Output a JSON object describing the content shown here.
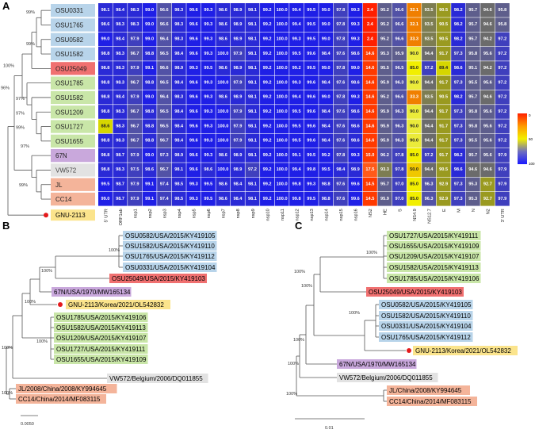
{
  "panels": {
    "a": "A",
    "b": "B",
    "c": "C"
  },
  "colors": {
    "blue": "#b8d4ea",
    "red": "#f07070",
    "green": "#c9e6a8",
    "purple": "#c9a8dc",
    "gray": "#e2e2e2",
    "orange": "#f4b49a",
    "yellow": "#fbe48c",
    "marker": "#e41a1c"
  },
  "heatmap": {
    "columns": [
      "5' UTR",
      "ORF1ab",
      "nsp1",
      "nsp2",
      "nsp3",
      "nsp4",
      "nsp5",
      "nsp6",
      "nsp7",
      "nsp8",
      "nsp9",
      "nsp10",
      "nsp11",
      "nsp12",
      "nsp13",
      "nsp14",
      "nsp15",
      "nsp16",
      "NS2",
      "HE",
      "S",
      "NS4.9",
      "NS12.7",
      "E",
      "M",
      "N",
      "N2",
      "3' UTR"
    ],
    "rows": [
      {
        "label": "OSU0331",
        "color": "blue",
        "values": [
          "98.1",
          "98.4",
          "98.3",
          "99.0",
          "96.6",
          "98.3",
          "99.6",
          "99.3",
          "98.6",
          "98.9",
          "98.1",
          "99.2",
          "100.0",
          "99.4",
          "99.5",
          "99.0",
          "97.8",
          "99.3",
          "2.4",
          "95.2",
          "96.6",
          "32.1",
          "93.5",
          "90.5",
          "98.2",
          "95.7",
          "94.6",
          "95.8"
        ]
      },
      {
        "label": "OSU1765",
        "color": "blue",
        "values": [
          "98.6",
          "98.3",
          "98.3",
          "99.0",
          "96.6",
          "98.3",
          "99.6",
          "99.3",
          "98.6",
          "98.9",
          "98.1",
          "99.2",
          "100.0",
          "99.4",
          "99.5",
          "99.0",
          "97.8",
          "99.3",
          "2.4",
          "95.2",
          "96.6",
          "32.1",
          "93.5",
          "90.5",
          "98.2",
          "95.7",
          "94.6",
          "95.8"
        ]
      },
      {
        "label": "OSU0582",
        "color": "blue",
        "values": [
          "99.0",
          "98.4",
          "97.9",
          "99.0",
          "96.4",
          "98.3",
          "99.6",
          "99.3",
          "98.6",
          "98.9",
          "98.1",
          "99.2",
          "100.0",
          "99.3",
          "99.5",
          "99.0",
          "97.8",
          "99.3",
          "2.4",
          "95.2",
          "96.6",
          "33.3",
          "93.5",
          "90.5",
          "98.2",
          "95.7",
          "94.2",
          "97.2"
        ]
      },
      {
        "label": "OSU1582",
        "color": "blue",
        "values": [
          "98.8",
          "98.3",
          "96.7",
          "98.8",
          "96.5",
          "98.4",
          "99.6",
          "99.3",
          "100.0",
          "97.9",
          "98.1",
          "99.2",
          "100.0",
          "99.5",
          "99.6",
          "98.4",
          "97.6",
          "98.6",
          "14.6",
          "95.3",
          "95.9",
          "90.0",
          "94.4",
          "91.7",
          "97.3",
          "95.8",
          "95.6",
          "97.2"
        ]
      },
      {
        "label": "OSU25049",
        "color": "red",
        "values": [
          "98.8",
          "98.3",
          "97.9",
          "99.1",
          "96.6",
          "98.9",
          "99.3",
          "99.5",
          "98.6",
          "98.9",
          "98.1",
          "99.2",
          "100.0",
          "99.2",
          "99.5",
          "99.0",
          "97.8",
          "99.0",
          "14.6",
          "95.5",
          "96.5",
          "85.0",
          "97.2",
          "89.4",
          "98.6",
          "95.1",
          "94.2",
          "97.2"
        ]
      },
      {
        "label": "OSU1785",
        "color": "green",
        "values": [
          "98.8",
          "98.3",
          "96.7",
          "98.8",
          "96.5",
          "98.4",
          "99.6",
          "99.3",
          "100.0",
          "97.9",
          "98.1",
          "99.2",
          "100.0",
          "99.3",
          "99.6",
          "98.4",
          "97.6",
          "98.6",
          "14.6",
          "95.9",
          "96.3",
          "90.0",
          "94.4",
          "91.7",
          "97.3",
          "95.5",
          "95.6",
          "97.2"
        ]
      },
      {
        "label": "OSU1582",
        "color": "green",
        "values": [
          "98.8",
          "98.4",
          "97.9",
          "99.0",
          "96.4",
          "98.3",
          "99.6",
          "99.3",
          "98.6",
          "98.9",
          "98.1",
          "99.2",
          "100.0",
          "99.4",
          "99.6",
          "99.0",
          "97.8",
          "99.3",
          "14.6",
          "95.2",
          "96.6",
          "33.3",
          "93.5",
          "90.5",
          "98.2",
          "95.7",
          "94.6",
          "97.2"
        ]
      },
      {
        "label": "OSU1209",
        "color": "green",
        "values": [
          "98.8",
          "98.3",
          "96.7",
          "98.8",
          "96.5",
          "98.4",
          "99.6",
          "99.3",
          "100.0",
          "97.9",
          "98.1",
          "99.2",
          "100.0",
          "99.5",
          "99.6",
          "98.4",
          "97.6",
          "98.6",
          "14.6",
          "95.9",
          "96.3",
          "90.0",
          "94.4",
          "91.7",
          "97.3",
          "95.8",
          "95.6",
          "97.2"
        ]
      },
      {
        "label": "OSU1727",
        "color": "green",
        "values": [
          "88.6",
          "98.3",
          "96.7",
          "98.8",
          "96.5",
          "98.4",
          "99.6",
          "99.3",
          "100.0",
          "97.9",
          "98.1",
          "99.2",
          "100.0",
          "99.5",
          "99.6",
          "98.4",
          "97.6",
          "98.6",
          "14.6",
          "95.9",
          "96.3",
          "90.0",
          "94.4",
          "91.7",
          "97.3",
          "95.8",
          "95.6",
          "97.2"
        ]
      },
      {
        "label": "OSU1655",
        "color": "green",
        "values": [
          "98.8",
          "98.3",
          "96.7",
          "98.8",
          "96.7",
          "98.4",
          "99.6",
          "99.3",
          "100.0",
          "97.9",
          "98.1",
          "99.2",
          "100.0",
          "99.5",
          "99.6",
          "98.4",
          "97.6",
          "98.6",
          "14.6",
          "95.9",
          "96.3",
          "90.0",
          "94.4",
          "91.7",
          "97.3",
          "95.5",
          "95.6",
          "97.2"
        ]
      },
      {
        "label": "67N",
        "color": "purple",
        "values": [
          "98.8",
          "98.7",
          "97.9",
          "99.0",
          "97.3",
          "98.9",
          "99.6",
          "99.3",
          "98.6",
          "98.9",
          "98.1",
          "99.2",
          "100.0",
          "99.1",
          "99.5",
          "99.2",
          "97.8",
          "99.3",
          "15.0",
          "96.2",
          "97.8",
          "85.0",
          "97.2",
          "91.7",
          "98.2",
          "95.7",
          "95.6",
          "97.9"
        ]
      },
      {
        "label": "VW572",
        "color": "gray",
        "values": [
          "98.8",
          "98.3",
          "97.5",
          "98.6",
          "96.7",
          "98.1",
          "99.6",
          "98.6",
          "100.0",
          "98.9",
          "97.2",
          "99.2",
          "100.0",
          "99.4",
          "99.8",
          "99.5",
          "98.4",
          "98.9",
          "17.5",
          "93.3",
          "97.8",
          "50.0",
          "94.4",
          "90.5",
          "98.6",
          "94.6",
          "94.6",
          "97.9"
        ]
      },
      {
        "label": "JL",
        "color": "orange",
        "values": [
          "99.5",
          "98.7",
          "97.9",
          "99.1",
          "97.4",
          "98.5",
          "99.3",
          "99.5",
          "98.6",
          "98.4",
          "98.1",
          "99.2",
          "100.0",
          "99.8",
          "99.3",
          "98.8",
          "97.6",
          "99.6",
          "14.5",
          "95.7",
          "97.0",
          "85.0",
          "96.3",
          "92.9",
          "97.3",
          "95.3",
          "92.7",
          "97.9"
        ]
      },
      {
        "label": "CC14",
        "color": "orange",
        "values": [
          "99.0",
          "98.7",
          "97.9",
          "99.1",
          "97.4",
          "98.5",
          "99.3",
          "99.5",
          "98.6",
          "98.4",
          "98.1",
          "99.2",
          "100.0",
          "99.8",
          "99.5",
          "98.8",
          "97.6",
          "99.6",
          "14.5",
          "95.9",
          "97.0",
          "85.0",
          "96.3",
          "92.9",
          "97.3",
          "95.3",
          "92.7",
          "97.9"
        ]
      }
    ],
    "bootstrap": [
      "99%",
      "99%",
      "100%",
      "96%",
      "97%",
      "97%",
      "99%",
      "99%",
      "97%"
    ],
    "ref_label": "GNU-2113",
    "legend_ticks": [
      "0",
      "50",
      "100"
    ]
  },
  "tree_b": {
    "tips": [
      {
        "label": "OSU0582/USA/2015/KY419105",
        "color": "blue"
      },
      {
        "label": "OSU1582/USA/2015/KY419110",
        "color": "blue"
      },
      {
        "label": "OSU1765/USA/2015/KY419112",
        "color": "blue"
      },
      {
        "label": "OSU0331/USA/2015/KY419104",
        "color": "blue"
      },
      {
        "label": "OSU25049/USA/2015/KY419103",
        "color": "red"
      },
      {
        "label": "67N/USA/1970/MW165134",
        "color": "purple"
      },
      {
        "label": "GNU-2113/Korea/2021/OL542832",
        "color": "yellow"
      },
      {
        "label": "OSU1785/USA/2015/KY419106",
        "color": "green"
      },
      {
        "label": "OSU1582/USA/2015/KY419113",
        "color": "green"
      },
      {
        "label": "OSU1209/USA/2015/KY419107",
        "color": "green"
      },
      {
        "label": "OSU1727/USA/2015/KY419111",
        "color": "green"
      },
      {
        "label": "OSU1655/USA/2015/KY419109",
        "color": "green"
      },
      {
        "label": "VW572/Belgium/2006/DQ011855",
        "color": "gray"
      },
      {
        "label": "JL/2008/China/2008/KY994645",
        "color": "orange"
      },
      {
        "label": "CC14/China/2014/MF083115",
        "color": "orange"
      }
    ],
    "bootstrap": [
      "100%",
      "100%",
      "100%",
      "100%",
      "100%",
      "100%"
    ],
    "scale": "0.0050"
  },
  "tree_c": {
    "tips": [
      {
        "label": "OSU1727/USA/2015/KY419111",
        "color": "green"
      },
      {
        "label": "OSU1655/USA/2015/KY419109",
        "color": "green"
      },
      {
        "label": "OSU1209/USA/2015/KY419107",
        "color": "green"
      },
      {
        "label": "OSU1582/USA/2015/KY419113",
        "color": "green"
      },
      {
        "label": "OSU1785/USA/2015/KY419106",
        "color": "green"
      },
      {
        "label": "OSU25049/USA/2015/KY419103",
        "color": "red"
      },
      {
        "label": "OSU0582/USA/2015/KY419105",
        "color": "blue"
      },
      {
        "label": "OSU1582/USA/2015/KY419110",
        "color": "blue"
      },
      {
        "label": "OSU0331/USA/2015/KY419104",
        "color": "blue"
      },
      {
        "label": "OSU1765/USA/2015/KY419112",
        "color": "blue"
      },
      {
        "label": "GNU-2113/Korea/2021/OL542832",
        "color": "yellow"
      },
      {
        "label": "67N/USA/1970/MW165134",
        "color": "purple"
      },
      {
        "label": "VW572/Belgium/2006/DQ011855",
        "color": "gray"
      },
      {
        "label": "JL/China/2008/KY994645",
        "color": "orange"
      },
      {
        "label": "CC14/China/2014/MF083115",
        "color": "orange"
      }
    ],
    "bootstrap": [
      "100%",
      "100%",
      "100%",
      "100%",
      "100%",
      "100%",
      "100%"
    ],
    "scale": "0.01"
  }
}
